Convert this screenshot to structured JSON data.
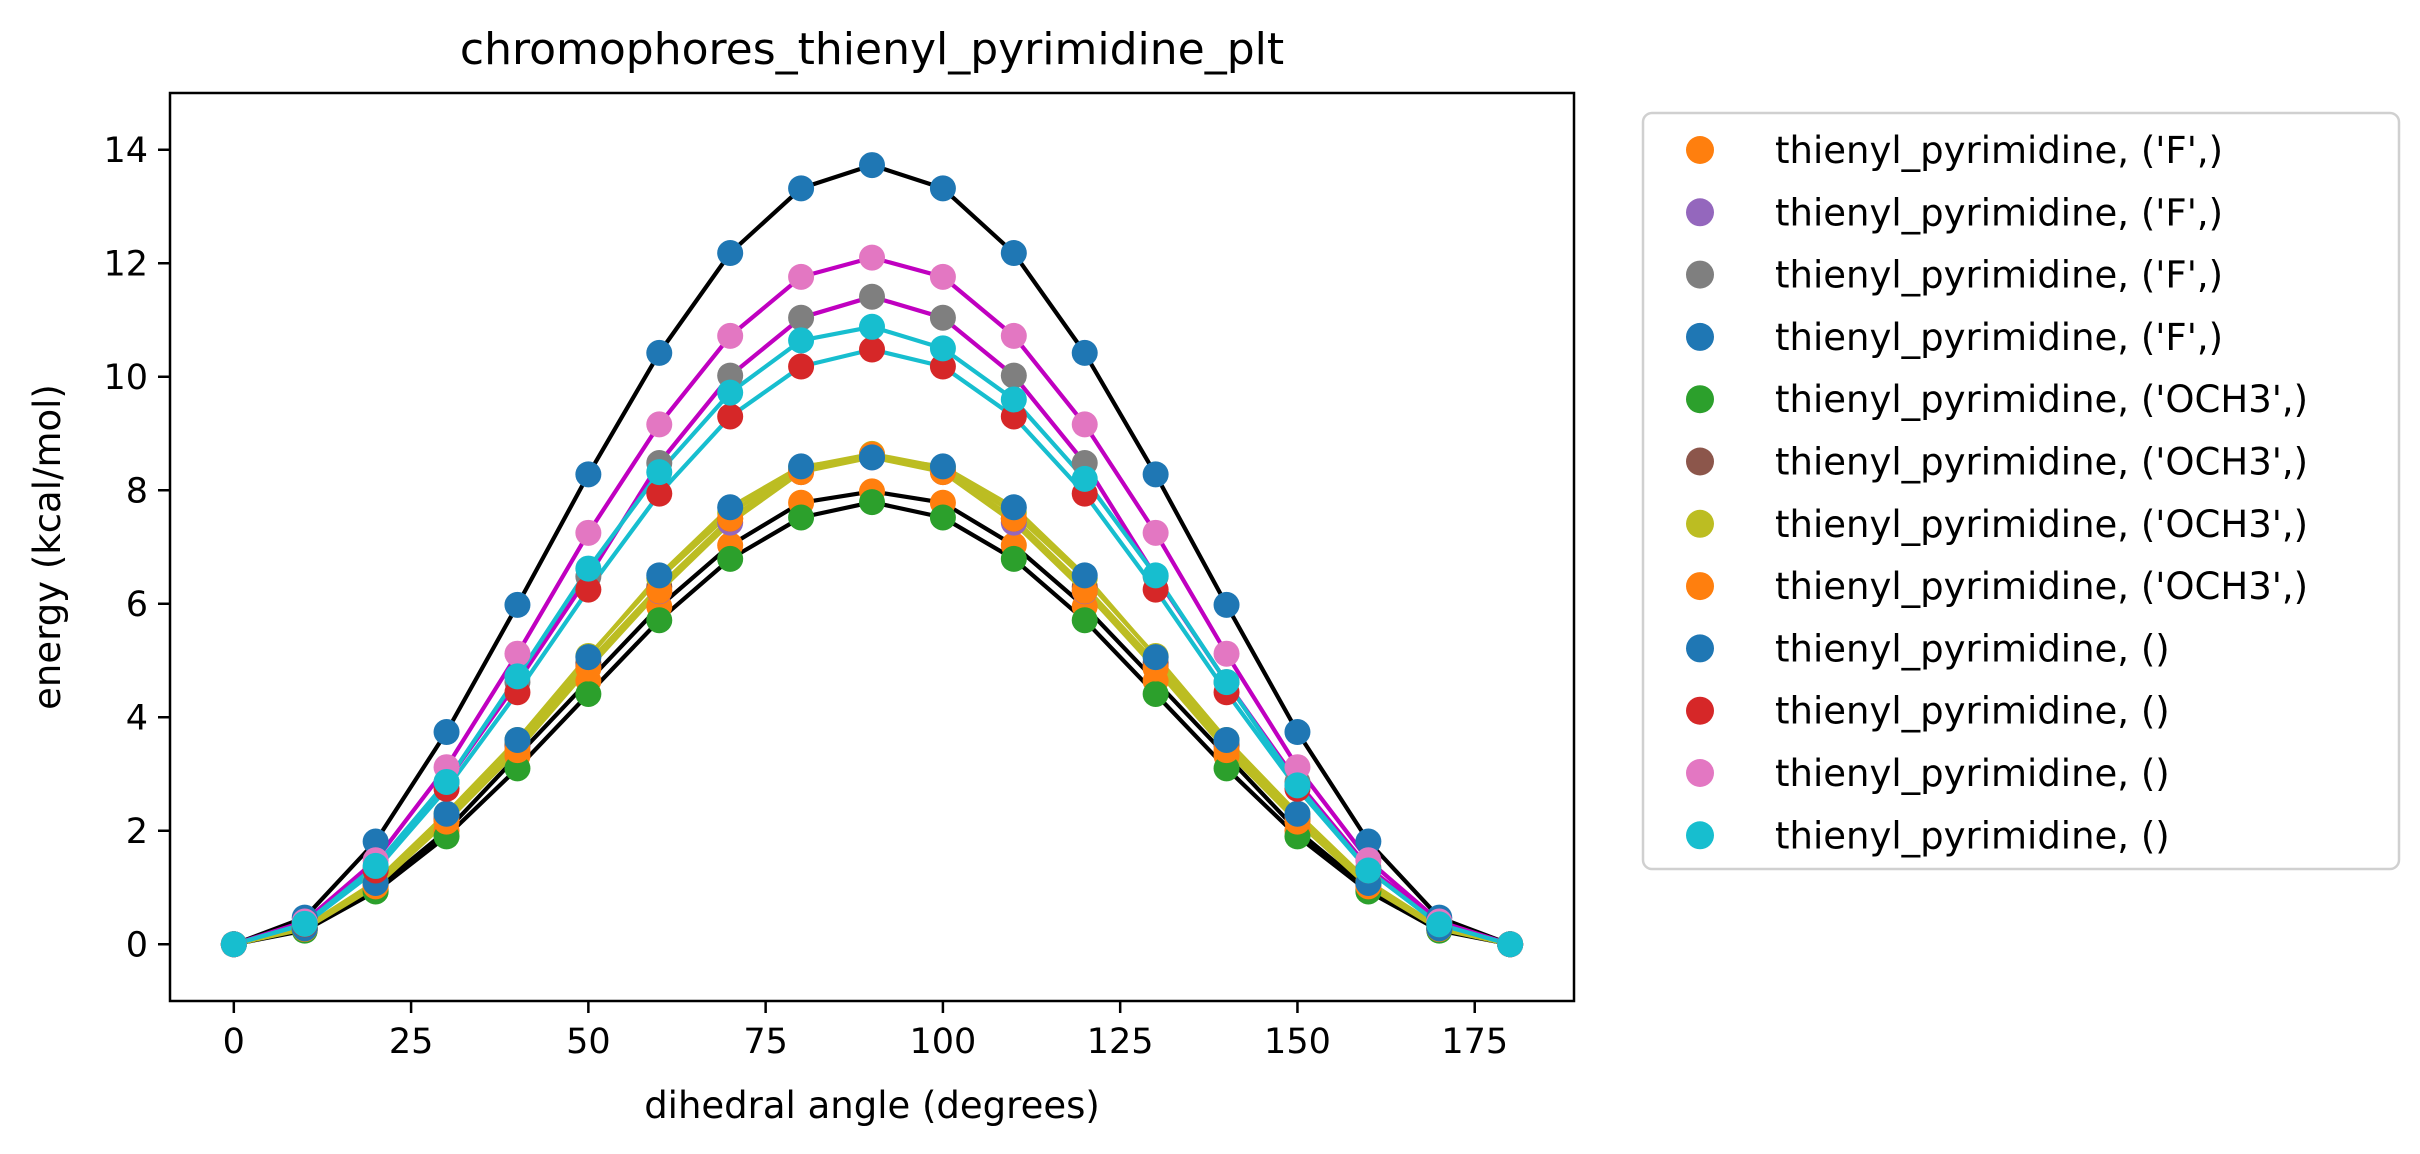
{
  "chart_data": {
    "type": "scatter",
    "title": "chromophores_thienyl_pyrimidine_plt",
    "xlabel": "dihedral angle (degrees)",
    "ylabel": "energy (kcal/mol)",
    "xlim": [
      -9,
      189
    ],
    "ylim": [
      -1,
      15
    ],
    "xticks": [
      0,
      25,
      50,
      75,
      100,
      125,
      150,
      175
    ],
    "xtick_labels": [
      "0",
      "25",
      "50",
      "75",
      "100",
      "125",
      "150",
      "175"
    ],
    "yticks": [
      0,
      2,
      4,
      6,
      8,
      10,
      12,
      14
    ],
    "ytick_labels": [
      "0",
      "2",
      "4",
      "6",
      "8",
      "10",
      "12",
      "14"
    ],
    "grid": false,
    "legend_position": "outside-right",
    "x": [
      0,
      10,
      20,
      30,
      40,
      50,
      60,
      70,
      80,
      90,
      100,
      110,
      120,
      130,
      140,
      150,
      160,
      170,
      180
    ],
    "series": [
      {
        "name": "thienyl_pyrimidine, ('F',)",
        "color": "#ff7f0e",
        "line_color": "#000000",
        "values": [
          0,
          0.26,
          0.97,
          2.0,
          3.32,
          4.64,
          5.95,
          7.03,
          7.78,
          7.98,
          7.78,
          7.03,
          5.95,
          4.64,
          3.32,
          2.0,
          0.97,
          0.26,
          0
        ]
      },
      {
        "name": "thienyl_pyrimidine, ('F',)",
        "color": "#9467bd",
        "line_color": "#bcbd22",
        "values": [
          0,
          0.28,
          1.06,
          2.25,
          3.5,
          4.9,
          6.22,
          7.43,
          8.32,
          8.58,
          8.32,
          7.43,
          6.22,
          4.9,
          3.5,
          2.25,
          1.06,
          0.28,
          0
        ]
      },
      {
        "name": "thienyl_pyrimidine, ('F',)",
        "color": "#7f7f7f",
        "line_color": "#c000c0",
        "values": [
          0,
          0.37,
          1.35,
          2.86,
          4.62,
          6.48,
          8.48,
          10.02,
          11.04,
          11.41,
          11.04,
          10.02,
          8.48,
          6.48,
          4.62,
          2.86,
          1.35,
          0.37,
          0
        ]
      },
      {
        "name": "thienyl_pyrimidine, ('F',)",
        "color": "#1f77b4",
        "line_color": "#000000",
        "values": [
          0,
          0.47,
          1.81,
          3.74,
          5.98,
          8.28,
          10.42,
          12.18,
          13.32,
          13.73,
          13.32,
          12.18,
          10.42,
          8.28,
          5.98,
          3.74,
          1.81,
          0.47,
          0
        ]
      },
      {
        "name": "thienyl_pyrimidine, ('OCH3',)",
        "color": "#2ca02c",
        "line_color": "#000000",
        "values": [
          0,
          0.24,
          0.93,
          1.9,
          3.1,
          4.41,
          5.71,
          6.79,
          7.52,
          7.79,
          7.52,
          6.79,
          5.71,
          4.41,
          3.1,
          1.9,
          0.93,
          0.24,
          0
        ]
      },
      {
        "name": "thienyl_pyrimidine, ('OCH3',)",
        "color": "#8c564b",
        "line_color": "#bcbd22",
        "values": [
          0,
          0.28,
          1.05,
          2.2,
          3.52,
          4.96,
          6.3,
          7.5,
          8.35,
          8.6,
          8.35,
          7.5,
          6.3,
          4.96,
          3.52,
          2.2,
          1.05,
          0.28,
          0
        ]
      },
      {
        "name": "thienyl_pyrimidine, ('OCH3',)",
        "color": "#bcbd22",
        "line_color": "#bcbd22",
        "values": [
          0,
          0.3,
          1.1,
          2.3,
          3.6,
          5.08,
          6.45,
          7.6,
          8.4,
          8.64,
          8.4,
          7.6,
          6.45,
          5.08,
          3.6,
          2.3,
          1.1,
          0.3,
          0
        ]
      },
      {
        "name": "thienyl_pyrimidine, ('OCH3',)",
        "color": "#ff7f0e",
        "line_color": "#bcbd22",
        "values": [
          0,
          0.27,
          1.02,
          2.16,
          3.42,
          4.86,
          6.23,
          7.5,
          8.32,
          8.63,
          8.32,
          7.5,
          6.23,
          4.86,
          3.42,
          2.16,
          1.02,
          0.27,
          0
        ]
      },
      {
        "name": "thienyl_pyrimidine, ()",
        "color": "#1f77b4",
        "line_color": "#bcbd22",
        "values": [
          0,
          0.28,
          1.08,
          2.3,
          3.6,
          5.06,
          6.5,
          7.7,
          8.42,
          8.58,
          8.42,
          7.7,
          6.5,
          5.06,
          3.6,
          2.3,
          1.08,
          0.28,
          0
        ]
      },
      {
        "name": "thienyl_pyrimidine, ()",
        "color": "#d62728",
        "line_color": "#17becf",
        "values": [
          0,
          0.35,
          1.3,
          2.74,
          4.44,
          6.25,
          7.94,
          9.3,
          10.18,
          10.48,
          10.18,
          9.3,
          7.94,
          6.25,
          4.44,
          2.74,
          1.3,
          0.35,
          0
        ]
      },
      {
        "name": "thienyl_pyrimidine, ()",
        "color": "#e377c2",
        "line_color": "#c000c0",
        "values": [
          0,
          0.4,
          1.48,
          3.12,
          5.12,
          7.25,
          9.16,
          10.72,
          11.76,
          12.1,
          11.76,
          10.72,
          9.16,
          7.25,
          5.12,
          3.12,
          1.48,
          0.4,
          0
        ]
      },
      {
        "name": "thienyl_pyrimidine, ()",
        "color": "#17becf",
        "line_color": "#17becf",
        "values": [
          0,
          0.36,
          1.38,
          2.86,
          4.72,
          6.62,
          8.32,
          9.72,
          10.64,
          10.88,
          10.5,
          9.6,
          8.2,
          6.5,
          4.62,
          2.8,
          1.3,
          0.35,
          0
        ]
      }
    ]
  }
}
